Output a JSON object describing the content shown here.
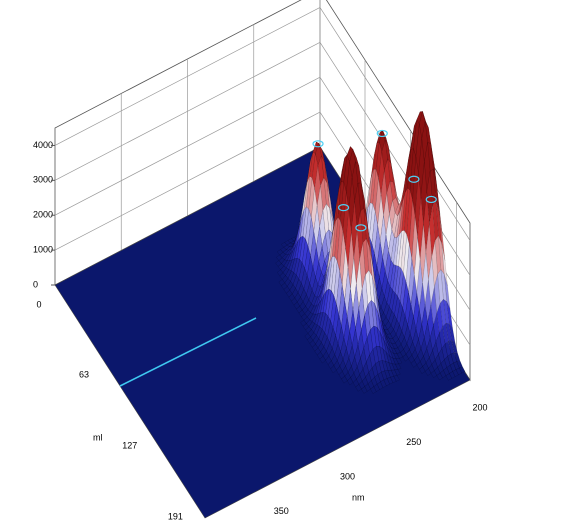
{
  "chart_data": {
    "type": "surface",
    "xlabel": "nm",
    "ylabel": "ml",
    "xlim": [
      200,
      400
    ],
    "xticks": [
      200,
      250,
      300,
      350
    ],
    "ylim": [
      0,
      210
    ],
    "yticks": [
      0,
      63,
      127,
      191
    ],
    "zlim": [
      0,
      4500
    ],
    "zticks": [
      0,
      1000,
      2000,
      3000,
      4000
    ],
    "grid": true,
    "floor_color": "#0b176c",
    "colormap": [
      "#0b176c",
      "#3434d0",
      "#efedf2",
      "#c83030",
      "#8a1212"
    ],
    "peaks": [
      {
        "x": 250,
        "y": 90,
        "z": 4000
      },
      {
        "x": 215,
        "y": 115,
        "z": 4400
      },
      {
        "x": 210,
        "y": 150,
        "z": 4100
      },
      {
        "x": 205,
        "y": 165,
        "z": 3900
      },
      {
        "x": 255,
        "y": 135,
        "z": 3700
      },
      {
        "x": 250,
        "y": 150,
        "z": 3500
      }
    ]
  }
}
